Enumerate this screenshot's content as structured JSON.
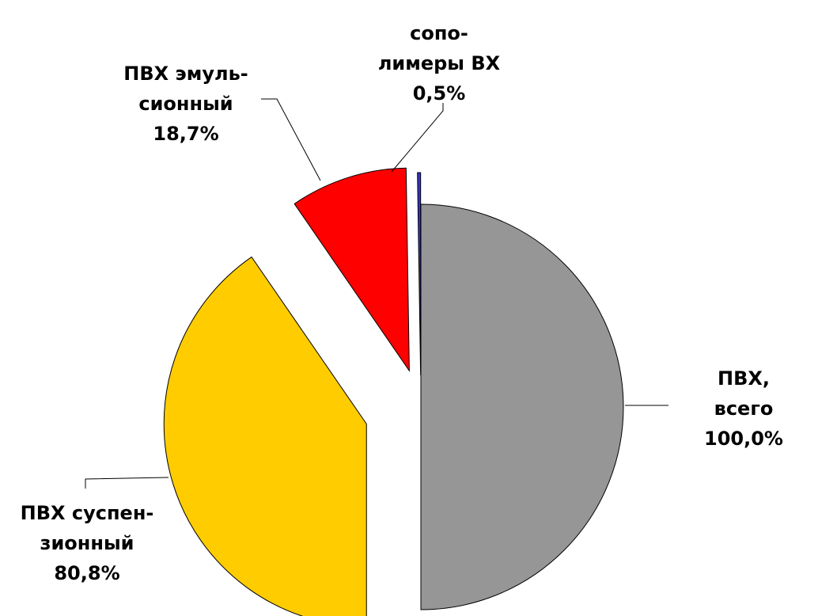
{
  "chart_data": {
    "type": "pie",
    "categories": [
      "ПВХ, всего",
      "ПВХ суспен-\nзионный",
      "ПВХ эмуль-\nсионный",
      "сопо-\nлимеры ВХ"
    ],
    "values": [
      100.0,
      80.8,
      18.7,
      0.5
    ],
    "value_labels": [
      "100,0%",
      "80,8%",
      "18,7%",
      "0,5%"
    ],
    "colors": [
      "#969696",
      "#ffcc00",
      "#ff0000",
      "#3333cc"
    ]
  }
}
